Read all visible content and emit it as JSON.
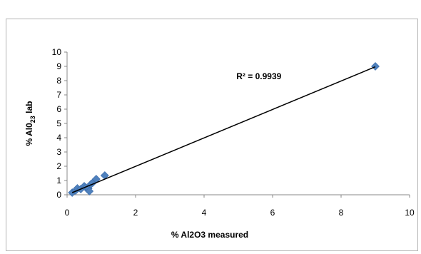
{
  "chart_data": {
    "type": "scatter",
    "title": "",
    "xlabel": "% Al2O3 measured",
    "ylabel_parts": [
      "% Al",
      "0",
      "2",
      "3",
      " lab"
    ],
    "xlim": [
      0,
      10
    ],
    "ylim": [
      0,
      10
    ],
    "xticks": [
      "0",
      "2",
      "4",
      "6",
      "8",
      "10"
    ],
    "yticks": [
      "0",
      "1",
      "2",
      "3",
      "4",
      "5",
      "6",
      "7",
      "8",
      "9",
      "10"
    ],
    "grid": false,
    "legend": "none",
    "marker_color": "#4F81BD",
    "trendline_color": "#000000",
    "annotation": "R² = 0.9939",
    "annotation_position": {
      "x": 5.6,
      "y": 8.1
    },
    "series": [
      {
        "points": [
          {
            "x": 0.15,
            "y": 0.15
          },
          {
            "x": 0.25,
            "y": 0.3
          },
          {
            "x": 0.3,
            "y": 0.45
          },
          {
            "x": 0.4,
            "y": 0.4
          },
          {
            "x": 0.5,
            "y": 0.6
          },
          {
            "x": 0.55,
            "y": 0.5
          },
          {
            "x": 0.62,
            "y": 0.45
          },
          {
            "x": 0.65,
            "y": 0.25
          },
          {
            "x": 0.7,
            "y": 0.75
          },
          {
            "x": 0.75,
            "y": 0.85
          },
          {
            "x": 0.85,
            "y": 1.1
          },
          {
            "x": 1.1,
            "y": 1.35
          },
          {
            "x": 9.0,
            "y": 9.0
          }
        ]
      }
    ],
    "trendline": {
      "x1": 0.15,
      "y1": 0.15,
      "x2": 9.0,
      "y2": 8.97
    }
  }
}
